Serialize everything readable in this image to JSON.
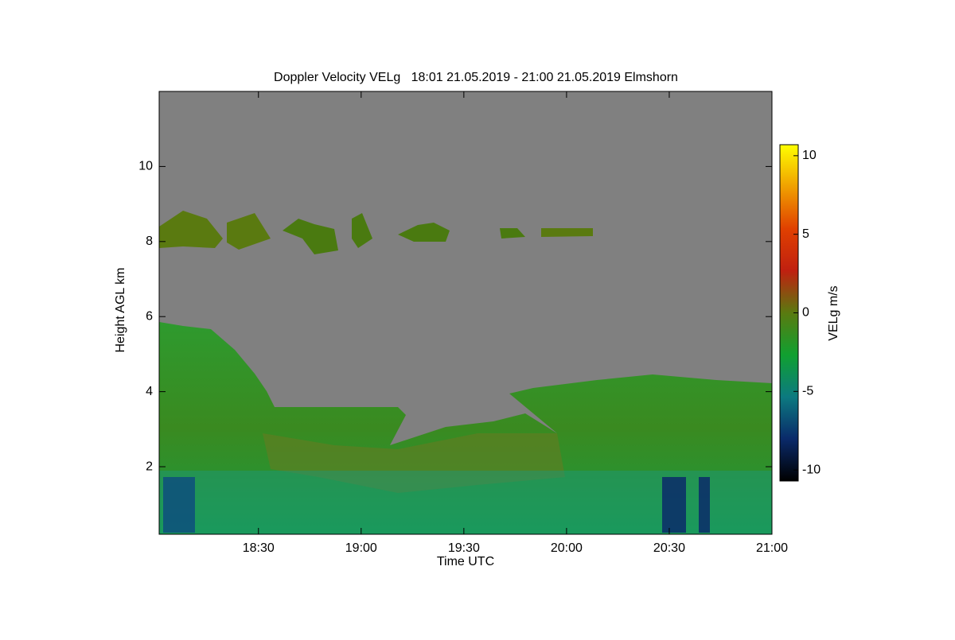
{
  "chart_data": {
    "type": "heatmap",
    "title": "Doppler Velocity VELg   18:01 21.05.2019 - 21:00 21.05.2019 Elmshorn",
    "x_label": "Time UTC",
    "y_label": "Height AGL km",
    "xlim": [
      1081,
      1260
    ],
    "xticks": [
      {
        "value": 1110,
        "label": "18:30"
      },
      {
        "value": 1140,
        "label": "19:00"
      },
      {
        "value": 1170,
        "label": "19:30"
      },
      {
        "value": 1200,
        "label": "20:00"
      },
      {
        "value": 1230,
        "label": "20:30"
      },
      {
        "value": 1260,
        "label": "21:00"
      }
    ],
    "ylim": [
      0.2,
      12
    ],
    "yticks": [
      2,
      4,
      6,
      8,
      10
    ],
    "colorbar": {
      "label": "VELg m/s",
      "lim": [
        -10.7,
        10.7
      ],
      "ticks": [
        -10,
        -5,
        0,
        5,
        10
      ],
      "colormap": [
        "#000000",
        "#0a2a6a",
        "#0c7a80",
        "#10a030",
        "#5a7a10",
        "#c02010",
        "#e04000",
        "#f0a000",
        "#ffff00"
      ]
    },
    "background_color": "#808080"
  }
}
